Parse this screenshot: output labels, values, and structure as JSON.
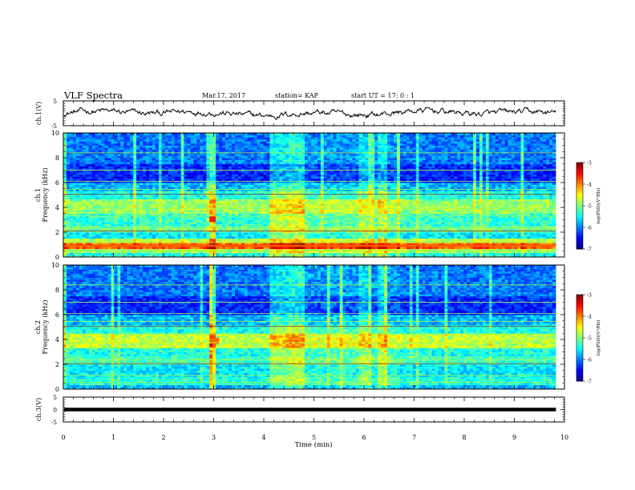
{
  "header": {
    "title": "VLF Spectra",
    "date": "Mar.17, 2017",
    "station": "station= KAP",
    "start_time": "start  UT =   17: 0  : 1"
  },
  "chart_data": [
    {
      "id": "ch1_waveform",
      "type": "line",
      "ylabel": "ch.1(V)",
      "ylim": [
        -5,
        5
      ],
      "yticks": [
        "5",
        "-5"
      ],
      "xlim": [
        0,
        10
      ],
      "data_end_min": 9.83
    },
    {
      "id": "ch1_spectrogram",
      "type": "heatmap",
      "ylabel_channel": "ch.1",
      "ylabel": "Frequency (kHz)",
      "ylim": [
        0,
        10
      ],
      "yticks": [
        "0",
        "2",
        "4",
        "6",
        "8",
        "10"
      ],
      "xlim": [
        0,
        10
      ],
      "data_end_min": 9.83,
      "colorbar": {
        "label": "log(PSD)(V²/Hz)",
        "range": [
          -7,
          -3
        ],
        "ticks": [
          "-3",
          "-4",
          "-5",
          "-6",
          "-7"
        ],
        "colormap": "jet"
      }
    },
    {
      "id": "ch2_spectrogram",
      "type": "heatmap",
      "ylabel_channel": "ch.2",
      "ylabel": "Frequency (kHz)",
      "ylim": [
        0,
        10
      ],
      "yticks": [
        "0",
        "2",
        "4",
        "6",
        "8",
        "10"
      ],
      "xlim": [
        0,
        10
      ],
      "data_end_min": 9.83,
      "colorbar": {
        "label": "log(PSD)(V²/Hz)",
        "range": [
          -7,
          -3
        ],
        "ticks": [
          "-3",
          "-4",
          "-5",
          "-6",
          "-7"
        ],
        "colormap": "jet"
      }
    },
    {
      "id": "ch3_waveform",
      "type": "line",
      "ylabel": "ch.3(V)",
      "ylim": [
        -5,
        5
      ],
      "yticks": [
        "5",
        "0",
        "-5"
      ],
      "xlim": [
        0,
        10
      ],
      "data_end_min": 9.83,
      "level_v": 0,
      "xlabel": "Time (min)",
      "xticks": [
        "0",
        "1",
        "2",
        "3",
        "4",
        "5",
        "6",
        "7",
        "8",
        "9",
        "10"
      ]
    }
  ]
}
